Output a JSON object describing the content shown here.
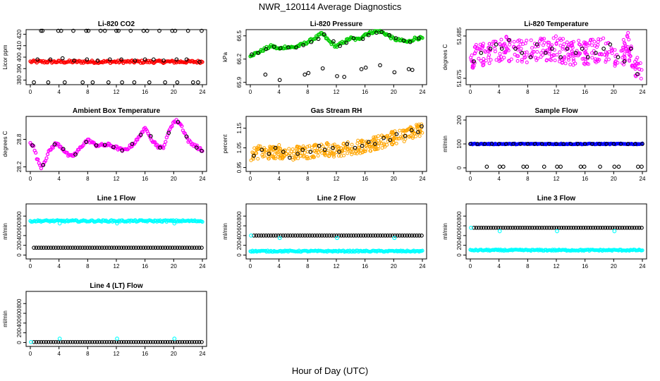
{
  "page": {
    "title": "NWR_120114  Average Diagnostics",
    "xlabel": "Hour of Day (UTC)"
  },
  "colors": {
    "red": "#ff0000",
    "green": "#00cc00",
    "magenta": "#ff00ff",
    "orange": "#ffa500",
    "blue": "#0000ff",
    "cyan": "#00ffff",
    "black": "#000000"
  },
  "chart_data": [
    {
      "type": "scatter",
      "title": "Li-820 CO2",
      "ylabel": "Licor ppm",
      "xlim": [
        0,
        24
      ],
      "ylim": [
        376,
        424
      ],
      "x_ticks": [
        0,
        4,
        8,
        12,
        16,
        20,
        24
      ],
      "y_ticks": [
        380,
        390,
        400,
        410,
        420
      ],
      "series": [
        {
          "style": "band",
          "color": "red",
          "x": [
            0,
            24
          ],
          "values": [
            396,
            396
          ],
          "spread": 1.2
        },
        {
          "style": "points",
          "color": "black",
          "x": [
            1.5,
            1.7,
            3.9,
            4.3,
            6.0,
            7.8,
            8.1,
            9.8,
            10.4,
            12.0,
            12.3,
            14.0,
            15.8,
            16.3,
            18.0,
            19.8,
            20.2,
            22.0,
            23.9,
            1.0,
            2.8,
            4.5,
            6.1,
            7.9,
            9.4,
            11.1,
            12.7,
            14.6,
            16.0,
            17.2,
            18.6,
            20.4,
            21.8,
            23.6,
            0.5,
            2.5,
            4.8,
            7.3,
            8.7,
            10.9,
            12.8,
            14.5,
            16.6,
            18.8,
            20.5,
            22.7,
            23.4
          ],
          "values": [
            423,
            423,
            423,
            423,
            423,
            423,
            423,
            423,
            423,
            423,
            423,
            423,
            423,
            423,
            423,
            423,
            423,
            423,
            423,
            398,
            398,
            399,
            397,
            398,
            397,
            398,
            398,
            397,
            398,
            398,
            397,
            398,
            398,
            396,
            378,
            378,
            378,
            378,
            378,
            378,
            378,
            378,
            378,
            378,
            378,
            378,
            378
          ]
        }
      ]
    },
    {
      "type": "scatter",
      "title": "Li-820 Pressure",
      "ylabel": "kPa",
      "xlim": [
        0,
        24
      ],
      "ylim": [
        65.87,
        66.58
      ],
      "x_ticks": [
        0,
        4,
        8,
        12,
        16,
        20,
        24
      ],
      "y_ticks": [
        65.9,
        66.2,
        66.5
      ],
      "y_tick_labels": [
        "65.9",
        "66.2",
        "66.5"
      ],
      "extra_tick_labels": [
        "66.5",
        "66.2",
        "65.9"
      ],
      "series": [
        {
          "style": "band",
          "color": "green",
          "x": [
            0,
            1,
            2,
            3,
            4,
            5,
            6,
            7,
            8,
            9,
            10,
            11,
            12,
            13,
            14,
            15,
            16,
            17,
            18,
            19,
            20,
            21,
            22,
            23,
            24
          ],
          "values": [
            66.25,
            66.28,
            66.33,
            66.37,
            66.33,
            66.36,
            66.35,
            66.38,
            66.42,
            66.47,
            66.53,
            66.43,
            66.36,
            66.42,
            66.47,
            66.45,
            66.52,
            66.55,
            66.56,
            66.52,
            66.46,
            66.44,
            66.42,
            66.47,
            66.47
          ],
          "spread": 0.018
        },
        {
          "style": "points",
          "color": "black",
          "x": [
            0.2,
            1.1,
            2.2,
            3.3,
            4.2,
            5.3,
            6.4,
            7.4,
            8.5,
            9.5,
            10.3,
            11.6,
            12.5,
            13.4,
            14.4,
            15.7,
            16.5,
            17.6,
            18.3,
            19.4,
            20.3,
            21.4,
            22.3,
            23.5,
            2.1,
            4.1,
            7.6,
            8.1,
            10.1,
            12.1,
            13.1,
            15.5,
            16.1,
            18.1,
            20.1,
            22.1,
            22.6
          ],
          "values": [
            66.26,
            66.28,
            66.33,
            66.36,
            66.34,
            66.35,
            66.35,
            66.38,
            66.42,
            66.46,
            66.52,
            66.43,
            66.37,
            66.41,
            66.47,
            66.46,
            66.51,
            66.54,
            66.55,
            66.51,
            66.47,
            66.44,
            66.42,
            66.47,
            66.0,
            65.93,
            66.0,
            66.02,
            66.08,
            65.98,
            65.97,
            66.07,
            66.09,
            66.12,
            66.03,
            66.07,
            66.06
          ]
        }
      ]
    },
    {
      "type": "scatter",
      "title": "Li-820 Temperature",
      "ylabel": "degrees C",
      "xlim": [
        0,
        24
      ],
      "ylim": [
        51.6735,
        51.6865
      ],
      "x_ticks": [
        0,
        4,
        8,
        12,
        16,
        20,
        24
      ],
      "y_ticks": [
        51.675,
        51.685
      ],
      "y_tick_labels": [
        "51.675",
        "51.685"
      ],
      "series": [
        {
          "style": "cloud",
          "color": "magenta",
          "x": [
            0,
            2,
            4,
            6,
            8,
            10,
            12,
            14,
            16,
            18,
            20,
            21,
            22,
            23,
            24
          ],
          "values": [
            51.68,
            51.681,
            51.682,
            51.682,
            51.681,
            51.682,
            51.682,
            51.681,
            51.681,
            51.682,
            51.681,
            51.68,
            51.683,
            51.678,
            51.675
          ],
          "spread": 0.003
        },
        {
          "style": "points",
          "color": "black",
          "x": [
            0.5,
            1.5,
            2.8,
            3.6,
            4.4,
            5.4,
            6.3,
            7.2,
            8.4,
            9.3,
            10.5,
            11.4,
            12.6,
            13.5,
            14.7,
            15.6,
            16.4,
            17.5,
            18.6,
            19.5,
            20.6,
            21.5,
            22.4,
            23.3
          ],
          "values": [
            51.679,
            51.681,
            51.682,
            51.683,
            51.682,
            51.684,
            51.682,
            51.681,
            51.68,
            51.683,
            51.681,
            51.682,
            51.68,
            51.682,
            51.681,
            51.682,
            51.68,
            51.681,
            51.682,
            51.683,
            51.68,
            51.679,
            51.682,
            51.676
          ]
        }
      ]
    },
    {
      "type": "line",
      "title": "Ambient Box Temperature",
      "ylabel": "degrees C",
      "xlim": [
        0,
        24
      ],
      "ylim": [
        28.1,
        29.3
      ],
      "x_ticks": [
        0,
        4,
        8,
        12,
        16,
        20,
        24
      ],
      "y_ticks": [
        28.2,
        28.8
      ],
      "y_tick_labels": [
        "28.2",
        "28.8"
      ],
      "series": [
        {
          "style": "band",
          "color": "magenta",
          "x": [
            0,
            0.5,
            1,
            1.5,
            2,
            2.5,
            3,
            3.5,
            4,
            4.5,
            5,
            5.5,
            6,
            6.5,
            7,
            7.5,
            8,
            8.5,
            9,
            10,
            11,
            12,
            13,
            14,
            15,
            15.5,
            16,
            16.5,
            17,
            17.5,
            18,
            18.5,
            19,
            19.5,
            20,
            20.5,
            21,
            21.5,
            22,
            22.5,
            23,
            23.5,
            24
          ],
          "values": [
            28.75,
            28.62,
            28.35,
            28.2,
            28.32,
            28.5,
            28.62,
            28.7,
            28.68,
            28.6,
            28.5,
            28.42,
            28.45,
            28.52,
            28.62,
            28.72,
            28.78,
            28.75,
            28.68,
            28.67,
            28.68,
            28.62,
            28.55,
            28.65,
            28.8,
            28.95,
            29.02,
            28.95,
            28.78,
            28.7,
            28.62,
            28.62,
            28.8,
            29.05,
            29.18,
            29.2,
            29.12,
            28.95,
            28.78,
            28.7,
            28.68,
            28.6,
            28.55
          ],
          "spread": 0.035
        },
        {
          "style": "points",
          "color": "black",
          "x": [
            0.3,
            1.8,
            3.4,
            4.6,
            6.3,
            7.8,
            9.2,
            10.4,
            11.6,
            12.8,
            14.2,
            15.4,
            16.8,
            18.1,
            19.3,
            20.6,
            21.8,
            23.2,
            23.9
          ],
          "values": [
            28.67,
            28.24,
            28.69,
            28.59,
            28.47,
            28.74,
            28.67,
            28.68,
            28.63,
            28.56,
            28.7,
            28.9,
            28.87,
            28.62,
            28.94,
            29.18,
            28.86,
            28.62,
            28.55
          ]
        }
      ]
    },
    {
      "type": "scatter",
      "title": "Gas Stream RH",
      "ylabel": "percent",
      "xlim": [
        0,
        24
      ],
      "ylim": [
        0.93,
        1.21
      ],
      "x_ticks": [
        0,
        4,
        8,
        12,
        16,
        20,
        24
      ],
      "y_ticks": [
        0.95,
        1.05,
        1.15
      ],
      "y_tick_labels": [
        "0.95",
        "1.05",
        "1.15"
      ],
      "series": [
        {
          "style": "cloud",
          "color": "orange",
          "x": [
            0,
            2,
            4,
            6,
            8,
            10,
            12,
            14,
            16,
            18,
            20,
            22,
            24
          ],
          "values": [
            1.02,
            1.03,
            1.03,
            1.02,
            1.03,
            1.04,
            1.04,
            1.05,
            1.06,
            1.08,
            1.1,
            1.12,
            1.15
          ],
          "spread": 0.035
        },
        {
          "style": "points",
          "color": "black",
          "x": [
            0.5,
            1.6,
            2.6,
            3.5,
            4.6,
            5.5,
            6.6,
            7.3,
            8.4,
            9.6,
            10.4,
            11.5,
            12.4,
            13.5,
            14.6,
            15.6,
            16.5,
            17.4,
            18.6,
            19.5,
            20.4,
            21.6,
            22.5,
            23.4,
            23.9
          ],
          "values": [
            1.01,
            1.04,
            1.02,
            1.05,
            1.03,
            1.0,
            1.02,
            1.04,
            1.03,
            1.06,
            1.04,
            1.05,
            1.03,
            1.07,
            1.05,
            1.06,
            1.08,
            1.07,
            1.1,
            1.09,
            1.12,
            1.11,
            1.14,
            1.13,
            1.16
          ]
        }
      ]
    },
    {
      "type": "scatter",
      "title": "Sample Flow",
      "ylabel": "ml/min",
      "xlim": [
        0,
        24
      ],
      "ylim": [
        -15,
        215
      ],
      "x_ticks": [
        0,
        4,
        8,
        12,
        16,
        20,
        24
      ],
      "y_ticks": [
        0,
        100,
        200
      ],
      "series": [
        {
          "style": "band",
          "color": "blue",
          "x": [
            0,
            24
          ],
          "values": [
            100,
            100
          ],
          "spread": 2
        },
        {
          "style": "points",
          "color": "black",
          "x": [
            0,
            1,
            2,
            3,
            4,
            5,
            6,
            7,
            8,
            9,
            10,
            11,
            12,
            13,
            14,
            15,
            16,
            17,
            18,
            19,
            20,
            21,
            22,
            23,
            24,
            2.3,
            4.1,
            4.6,
            7.4,
            7.9,
            10.3,
            12.1,
            12.6,
            15.4,
            15.9,
            18.1,
            20.1,
            20.7,
            23.4,
            23.9
          ],
          "values": [
            100,
            100,
            100,
            100,
            100,
            100,
            100,
            100,
            100,
            100,
            100,
            100,
            100,
            100,
            100,
            100,
            100,
            100,
            100,
            100,
            100,
            100,
            100,
            100,
            100,
            5,
            5,
            5,
            5,
            5,
            5,
            5,
            5,
            5,
            5,
            5,
            5,
            5,
            5,
            5
          ]
        }
      ]
    },
    {
      "type": "scatter",
      "title": "Line 1 Flow",
      "ylabel": "ml/min",
      "xlim": [
        0,
        24
      ],
      "ylim": [
        -80,
        1050
      ],
      "x_ticks": [
        0,
        4,
        8,
        12,
        16,
        20,
        24
      ],
      "y_ticks": [
        0,
        200,
        400,
        600,
        800
      ],
      "series": [
        {
          "style": "band",
          "color": "cyan",
          "x": [
            0,
            24
          ],
          "values": [
            700,
            700
          ],
          "spread": 18
        },
        {
          "style": "points",
          "color": "cyan",
          "x": [
            4.1,
            12.1,
            20.1
          ],
          "values": [
            650,
            650,
            650
          ]
        },
        {
          "style": "dense",
          "color": "black",
          "x": [
            0.5,
            23.9
          ],
          "values": [
            150,
            150
          ]
        }
      ]
    },
    {
      "type": "scatter",
      "title": "Line 2 Flow",
      "ylabel": "ml/min",
      "xlim": [
        0,
        24
      ],
      "ylim": [
        -80,
        1050
      ],
      "x_ticks": [
        0,
        4,
        8,
        12,
        16,
        20,
        24
      ],
      "y_ticks": [
        0,
        200,
        400,
        600,
        800
      ],
      "series": [
        {
          "style": "band",
          "color": "cyan",
          "x": [
            0,
            24
          ],
          "values": [
            80,
            80
          ],
          "spread": 14
        },
        {
          "style": "dense",
          "color": "black",
          "x": [
            0.5,
            23.9
          ],
          "values": [
            400,
            400
          ]
        },
        {
          "style": "points",
          "color": "cyan",
          "x": [
            0.1,
            4.1,
            12.1,
            20.1
          ],
          "values": [
            400,
            350,
            350,
            350
          ]
        }
      ]
    },
    {
      "type": "scatter",
      "title": "Line 3 Flow",
      "ylabel": "ml/min",
      "xlim": [
        0,
        24
      ],
      "ylim": [
        -80,
        1050
      ],
      "x_ticks": [
        0,
        4,
        8,
        12,
        16,
        20,
        24
      ],
      "y_ticks": [
        0,
        200,
        400,
        600,
        800
      ],
      "series": [
        {
          "style": "band",
          "color": "cyan",
          "x": [
            0,
            24
          ],
          "values": [
            100,
            100
          ],
          "spread": 14
        },
        {
          "style": "dense",
          "color": "black",
          "x": [
            0.5,
            23.9
          ],
          "values": [
            560,
            560
          ]
        },
        {
          "style": "points",
          "color": "cyan",
          "x": [
            0.1,
            4.1,
            12.1,
            20.1
          ],
          "values": [
            560,
            490,
            490,
            490
          ]
        }
      ]
    },
    {
      "type": "scatter",
      "title": "Line 4 (LT) Flow",
      "ylabel": "ml/min",
      "xlim": [
        0,
        24
      ],
      "ylim": [
        -80,
        1050
      ],
      "x_ticks": [
        0,
        4,
        8,
        12,
        16,
        20,
        24
      ],
      "y_ticks": [
        0,
        200,
        400,
        600,
        800
      ],
      "series": [
        {
          "style": "dense",
          "color": "black",
          "x": [
            0.5,
            23.9
          ],
          "values": [
            10,
            10
          ]
        },
        {
          "style": "points",
          "color": "cyan",
          "x": [
            0.1,
            4.1,
            12.1,
            20.1
          ],
          "values": [
            10,
            80,
            80,
            80
          ]
        }
      ]
    }
  ]
}
